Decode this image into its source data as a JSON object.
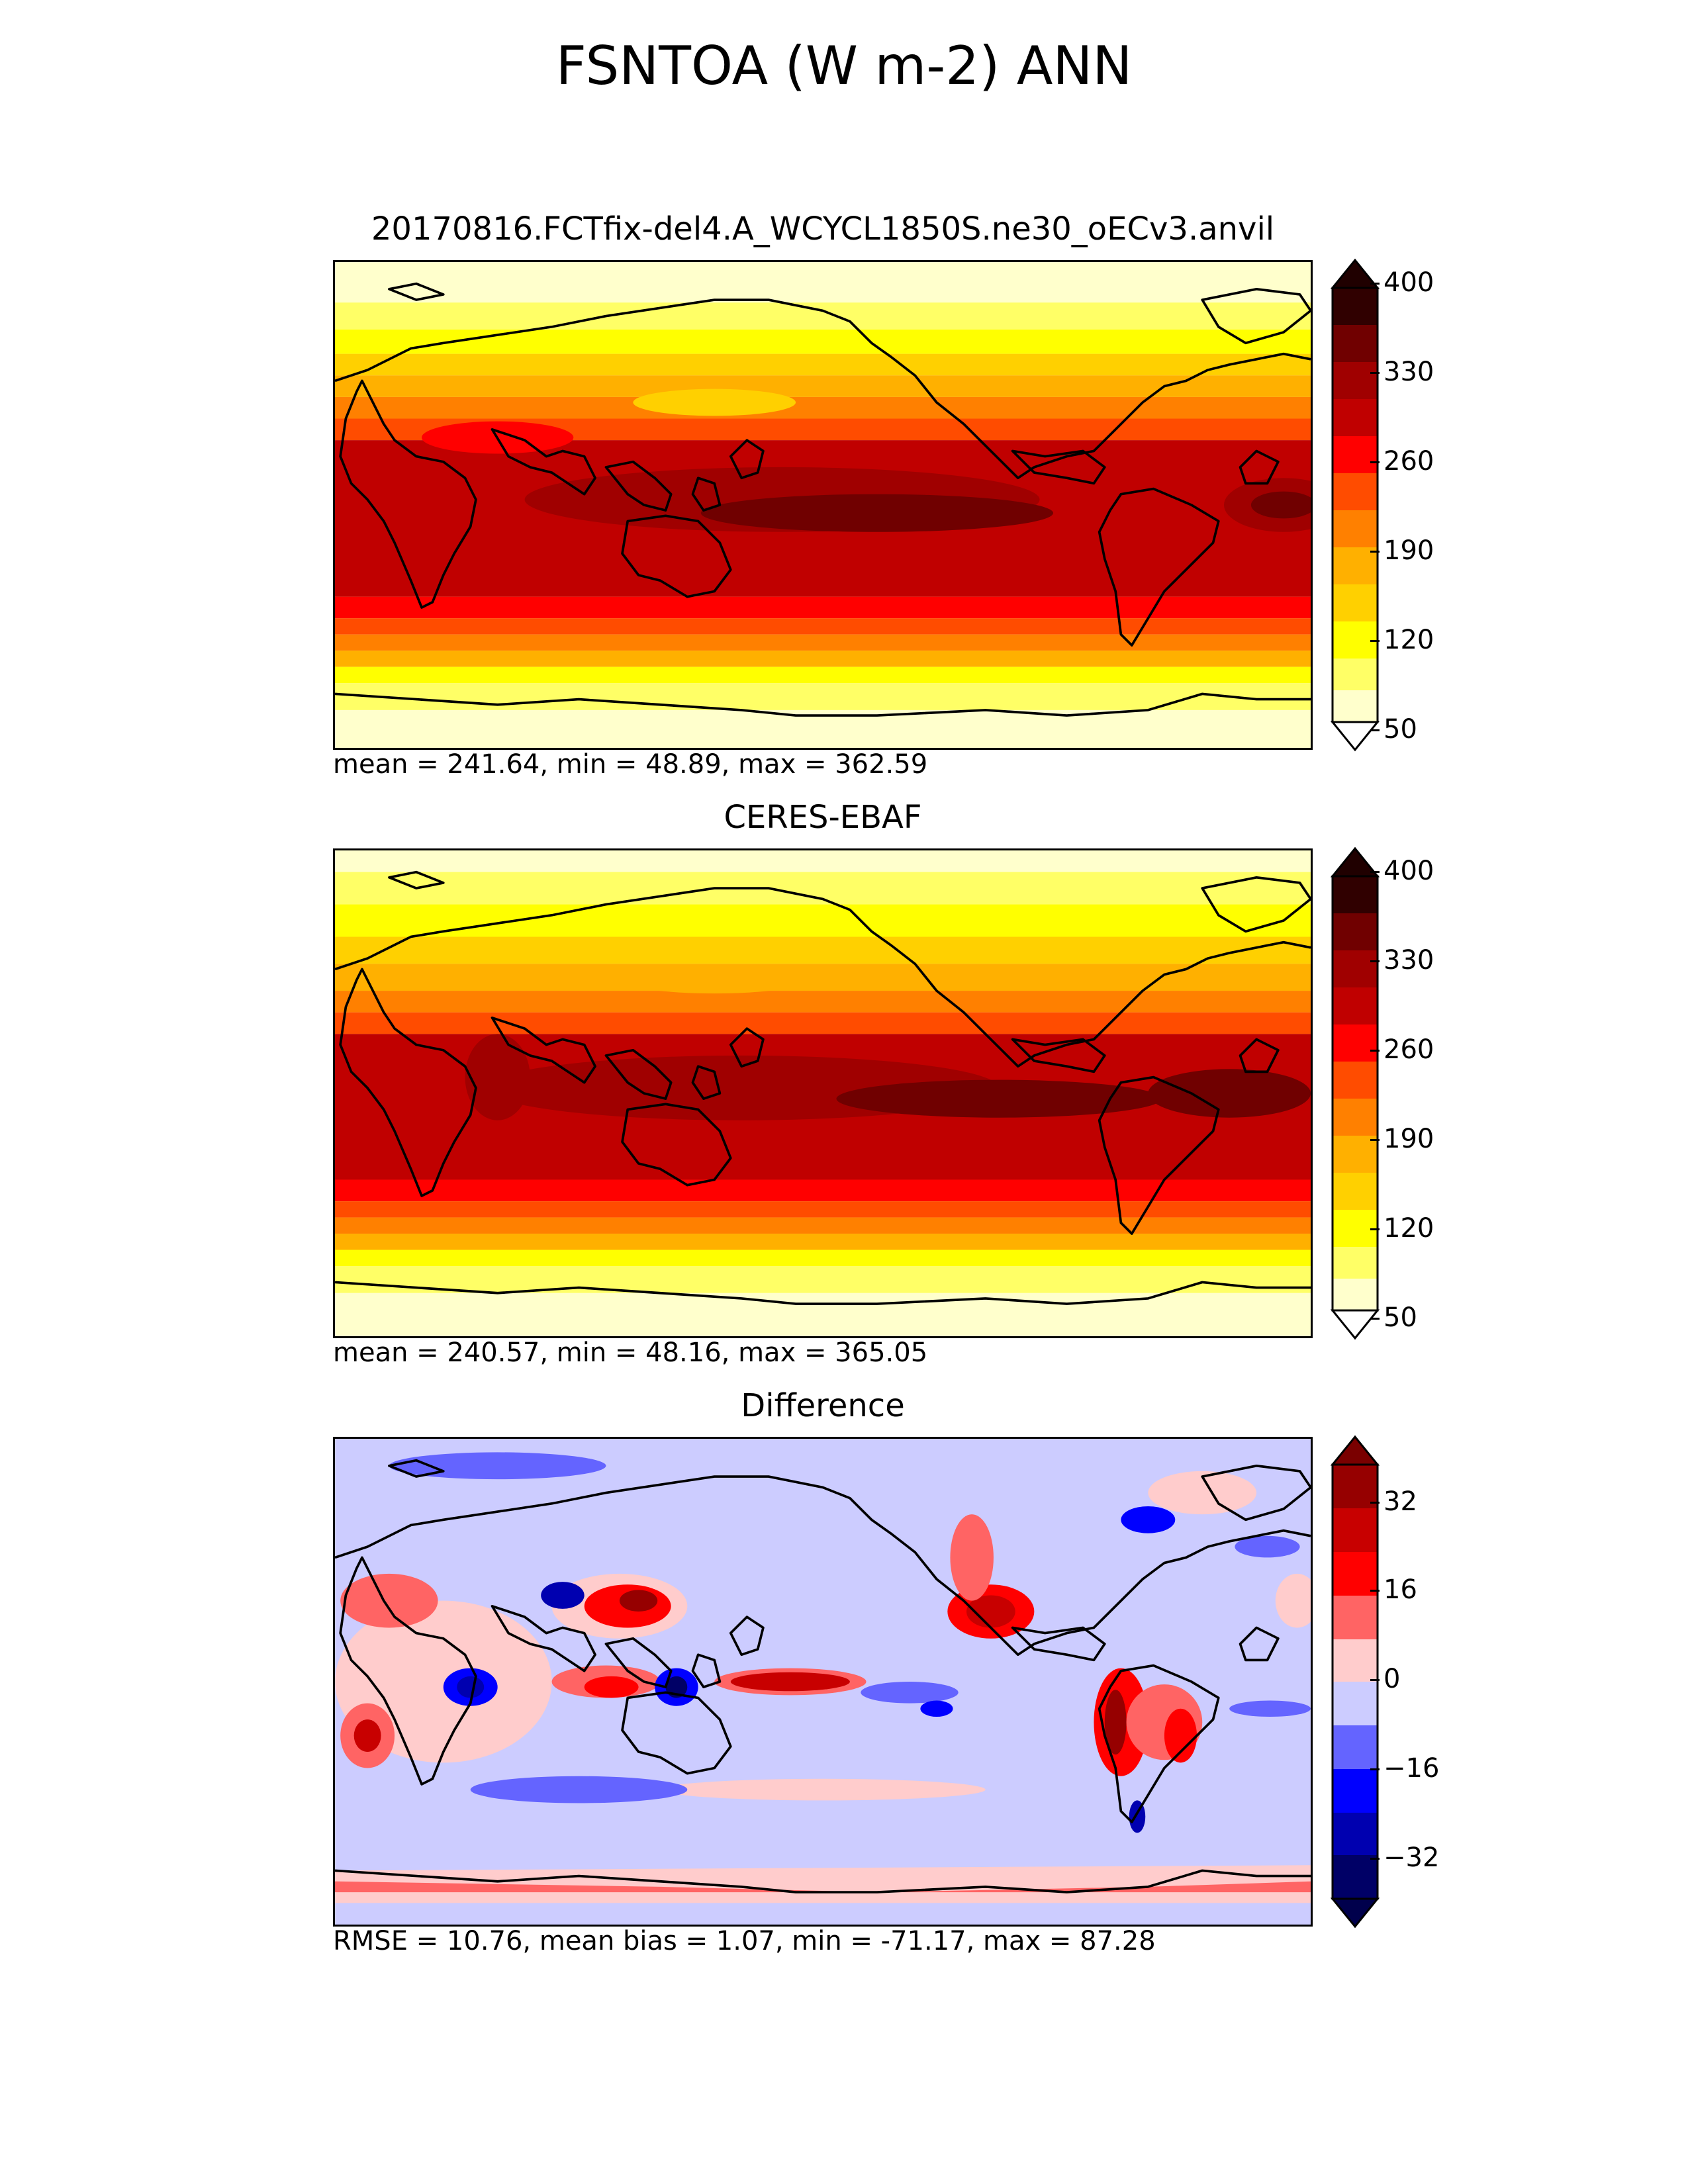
{
  "figure": {
    "title": "FSNTOA (W m-2) ANN"
  },
  "panels": [
    {
      "title": "20170816.FCTfix-del4.A_WCYCL1850S.ne30_oECv3.anvil",
      "stats": "mean = 241.64, min = 48.89, max = 362.59",
      "colorbar": {
        "ticks": [
          "400",
          "330",
          "260",
          "190",
          "120",
          "50"
        ],
        "colors": [
          "#ffffcc",
          "#ffff66",
          "#ffff00",
          "#ffd000",
          "#ffb000",
          "#ff8000",
          "#ff4c00",
          "#ff0000",
          "#c00000",
          "#a00000",
          "#700000",
          "#300000"
        ],
        "extend_low": "#ffffff",
        "extend_high": "#200000"
      }
    },
    {
      "title": "CERES-EBAF",
      "stats": "mean = 240.57, min = 48.16, max = 365.05",
      "colorbar": {
        "ticks": [
          "400",
          "330",
          "260",
          "190",
          "120",
          "50"
        ],
        "colors": [
          "#ffffcc",
          "#ffff66",
          "#ffff00",
          "#ffd000",
          "#ffb000",
          "#ff8000",
          "#ff4c00",
          "#ff0000",
          "#c00000",
          "#a00000",
          "#700000",
          "#300000"
        ],
        "extend_low": "#ffffff",
        "extend_high": "#200000"
      }
    },
    {
      "title": "Difference",
      "stats": "RMSE = 10.76, mean bias = 1.07, min = -71.17, max = 87.28",
      "colorbar": {
        "ticks": [
          "32",
          "16",
          "0",
          "−16",
          "−32"
        ],
        "colors": [
          "#000066",
          "#0000b0",
          "#0000ff",
          "#6464ff",
          "#ccccff",
          "#ffcccc",
          "#ff6464",
          "#ff0000",
          "#c80000",
          "#960000"
        ],
        "extend_low": "#00004c",
        "extend_high": "#7a0000"
      }
    }
  ],
  "colors": {
    "abs_field": [
      "#ffffcc",
      "#ffff66",
      "#ffff00",
      "#ffd000",
      "#ffb000",
      "#ff8000",
      "#ff4c00",
      "#ff0000",
      "#c00000",
      "#a00000",
      "#700000"
    ],
    "diff_background": "#ccccff",
    "diff_positive": [
      "#ffcccc",
      "#ff6464",
      "#ff0000",
      "#c80000",
      "#960000"
    ],
    "diff_negative": [
      "#6464ff",
      "#0000ff",
      "#0000b0"
    ],
    "coastline": "#000000"
  }
}
